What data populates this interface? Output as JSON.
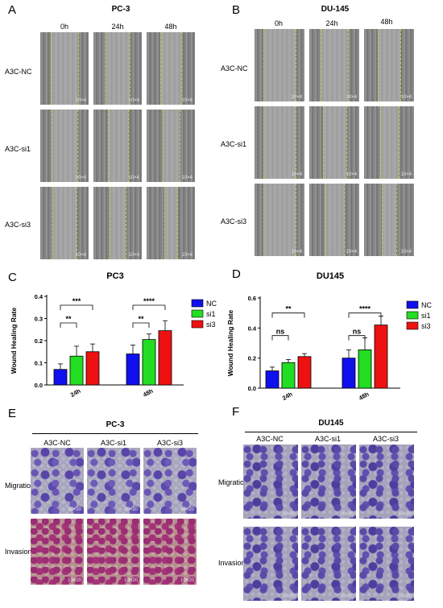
{
  "panels": {
    "A": {
      "letter": "A",
      "title": "PC-3",
      "cols": [
        "0h",
        "24h",
        "48h"
      ],
      "rows": [
        "A3C-NC",
        "A3C-si1",
        "A3C-si3"
      ],
      "mag": "10×4"
    },
    "B": {
      "letter": "B",
      "title": "DU-145",
      "cols": [
        "0h",
        "24h",
        "48h"
      ],
      "rows": [
        "A3C-NC",
        "A3C-si1",
        "A3C-si3"
      ],
      "mag": "10×4"
    },
    "E": {
      "letter": "E",
      "title": "PC-3",
      "cols": [
        "A3C-NC",
        "A3C-si1",
        "A3C-si3"
      ],
      "rows": [
        "Migration",
        "Invasion"
      ],
      "mag": "10×20"
    },
    "F": {
      "letter": "F",
      "title": "DU145",
      "cols": [
        "A3C-NC",
        "A3C-si1",
        "A3C-si3"
      ],
      "rows": [
        "Migration",
        "Invasion"
      ],
      "mag": "10×20"
    }
  },
  "colors": {
    "NC": "#1010ee",
    "si1": "#22dd22",
    "si3": "#ee1111",
    "heal_line": "#d6d23a"
  },
  "chart_data": [
    {
      "panel": "C",
      "type": "bar",
      "title": "PC3",
      "ylabel": "Wound Healing Rate",
      "xlabel": "",
      "categories": [
        "24h",
        "48h"
      ],
      "ylim": [
        0,
        0.4
      ],
      "yticks": [
        "0.0",
        "0.1",
        "0.2",
        "0.3",
        "0.4"
      ],
      "series": [
        {
          "name": "NC",
          "values": [
            0.07,
            0.14
          ],
          "errors": [
            0.025,
            0.04
          ]
        },
        {
          "name": "si1",
          "values": [
            0.13,
            0.205
          ],
          "errors": [
            0.045,
            0.025
          ]
        },
        {
          "name": "si3",
          "values": [
            0.15,
            0.245
          ],
          "errors": [
            0.035,
            0.045
          ]
        }
      ],
      "significance": [
        {
          "group": "24h",
          "pair": [
            "NC",
            "si1"
          ],
          "label": "**",
          "y": 0.28
        },
        {
          "group": "24h",
          "pair": [
            "NC",
            "si3"
          ],
          "label": "***",
          "y": 0.36
        },
        {
          "group": "48h",
          "pair": [
            "NC",
            "si1"
          ],
          "label": "**",
          "y": 0.28
        },
        {
          "group": "48h",
          "pair": [
            "NC",
            "si3"
          ],
          "label": "****",
          "y": 0.36
        }
      ],
      "legend": "right"
    },
    {
      "panel": "D",
      "type": "bar",
      "title": "DU145",
      "ylabel": "Wound Healing Rate",
      "xlabel": "",
      "categories": [
        "24h",
        "48h"
      ],
      "ylim": [
        0,
        0.6
      ],
      "yticks": [
        "0.0",
        "0.2",
        "0.4",
        "0.6"
      ],
      "series": [
        {
          "name": "NC",
          "values": [
            0.115,
            0.2
          ],
          "errors": [
            0.025,
            0.055
          ]
        },
        {
          "name": "si1",
          "values": [
            0.17,
            0.255
          ],
          "errors": [
            0.02,
            0.08
          ]
        },
        {
          "name": "si3",
          "values": [
            0.21,
            0.42
          ],
          "errors": [
            0.02,
            0.06
          ]
        }
      ],
      "significance": [
        {
          "group": "24h",
          "pair": [
            "NC",
            "si1"
          ],
          "label": "ns",
          "y": 0.35
        },
        {
          "group": "24h",
          "pair": [
            "NC",
            "si3"
          ],
          "label": "**",
          "y": 0.5
        },
        {
          "group": "48h",
          "pair": [
            "NC",
            "si1"
          ],
          "label": "ns",
          "y": 0.35
        },
        {
          "group": "48h",
          "pair": [
            "NC",
            "si3"
          ],
          "label": "****",
          "y": 0.5
        }
      ],
      "legend": "right"
    }
  ]
}
